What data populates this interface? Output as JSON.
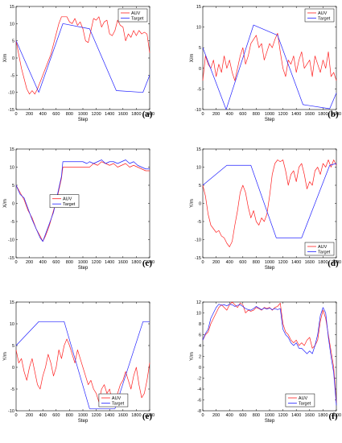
{
  "colors": {
    "auv": "#ff2020",
    "target": "#2020ff",
    "axis": "#000000"
  },
  "chart_data": [
    {
      "panel": "(a)",
      "type": "line",
      "xlabel": "Step",
      "ylabel": "X/m",
      "xlim": [
        0,
        2000
      ],
      "ylim": [
        -15,
        15
      ],
      "xticks": [
        0,
        200,
        400,
        600,
        800,
        1000,
        1200,
        1400,
        1600,
        1800,
        2000
      ],
      "yticks": [
        -15,
        -10,
        -5,
        0,
        5,
        10,
        15
      ],
      "legend": "top-right",
      "series": [
        {
          "name": "AUV",
          "color": "#ff2020",
          "x": [
            0,
            40,
            80,
            120,
            160,
            200,
            240,
            280,
            320,
            360,
            400,
            440,
            480,
            520,
            560,
            600,
            640,
            680,
            720,
            760,
            800,
            840,
            880,
            920,
            960,
            1000,
            1040,
            1080,
            1120,
            1160,
            1200,
            1240,
            1280,
            1320,
            1360,
            1400,
            1440,
            1480,
            1520,
            1560,
            1600,
            1640,
            1680,
            1720,
            1760,
            1800,
            1840,
            1880,
            1920,
            1960,
            2000
          ],
          "y": [
            5,
            1,
            -3,
            -6,
            -9,
            -10.5,
            -9.5,
            -10.5,
            -9,
            -7,
            -5,
            -3,
            -1,
            1,
            4,
            7,
            10,
            12,
            12,
            12,
            10.5,
            10,
            11.5,
            9.5,
            10.5,
            8.5,
            5,
            4.5,
            8,
            11.5,
            11,
            12,
            9,
            10.5,
            11,
            7,
            6.5,
            8,
            11,
            9.5,
            9,
            5,
            7,
            6,
            8,
            6.5,
            8,
            7,
            7.5,
            7,
            1.5
          ]
        },
        {
          "name": "Target",
          "color": "#2020ff",
          "x": [
            0,
            340,
            700,
            1100,
            1500,
            1900,
            2000
          ],
          "y": [
            5,
            -10,
            10,
            8.5,
            -9.5,
            -10,
            -5
          ]
        }
      ]
    },
    {
      "panel": "(b)",
      "type": "line",
      "xlabel": "Step",
      "ylabel": "X/m",
      "xlim": [
        0,
        2000
      ],
      "ylim": [
        -10,
        15
      ],
      "xticks": [
        0,
        200,
        400,
        600,
        800,
        1000,
        1200,
        1400,
        1600,
        1800,
        2000
      ],
      "yticks": [
        -10,
        -5,
        0,
        5,
        10,
        15
      ],
      "legend": "top-right",
      "series": [
        {
          "name": "AUV",
          "color": "#ff2020",
          "x": [
            0,
            40,
            80,
            120,
            160,
            200,
            240,
            280,
            320,
            360,
            400,
            440,
            480,
            520,
            560,
            600,
            640,
            680,
            720,
            760,
            800,
            840,
            880,
            920,
            960,
            1000,
            1040,
            1080,
            1120,
            1160,
            1200,
            1240,
            1280,
            1320,
            1360,
            1400,
            1440,
            1480,
            1520,
            1560,
            1600,
            1640,
            1680,
            1720,
            1760,
            1800,
            1840,
            1880,
            1920,
            1960,
            2000
          ],
          "y": [
            -3,
            3,
            1,
            0,
            2,
            -2,
            1,
            -1,
            3,
            0,
            2,
            -1,
            -3,
            0,
            3,
            5,
            1,
            3,
            6,
            7,
            8,
            5,
            6,
            2,
            4,
            6,
            5,
            7,
            8.5,
            4,
            0,
            -2,
            2,
            1,
            3,
            -1,
            2,
            4,
            0,
            1,
            2,
            -2,
            3,
            1,
            -1,
            2,
            0,
            4,
            -2,
            -1,
            -3
          ]
        },
        {
          "name": "Target",
          "color": "#2020ff",
          "x": [
            0,
            350,
            760,
            1120,
            1500,
            1900,
            2000
          ],
          "y": [
            5,
            -10,
            10.5,
            8,
            -8.8,
            -9.8,
            -6
          ]
        }
      ]
    },
    {
      "panel": "(c)",
      "type": "line",
      "xlabel": "Step",
      "ylabel": "X/m",
      "xlim": [
        0,
        2000
      ],
      "ylim": [
        -15,
        15
      ],
      "xticks": [
        0,
        200,
        400,
        600,
        800,
        1000,
        1200,
        1400,
        1600,
        1800,
        2000
      ],
      "yticks": [
        -15,
        -10,
        -5,
        0,
        5,
        10,
        15
      ],
      "legend": "left",
      "series": [
        {
          "name": "AUV",
          "color": "#ff2020",
          "x": [
            0,
            60,
            120,
            180,
            240,
            300,
            360,
            400,
            440,
            500,
            560,
            620,
            680,
            700,
            760,
            820,
            880,
            940,
            1000,
            1060,
            1100,
            1160,
            1220,
            1280,
            1340,
            1400,
            1460,
            1520,
            1580,
            1640,
            1700,
            1760,
            1820,
            1880,
            1940,
            2000
          ],
          "y": [
            5,
            3,
            1,
            -2,
            -4,
            -7,
            -9,
            -10.5,
            -9,
            -6,
            -2,
            2,
            7,
            10,
            10,
            10,
            10,
            10,
            10,
            10,
            10,
            11,
            10.5,
            11.5,
            11,
            10.5,
            11,
            10,
            10.5,
            11,
            10,
            10.5,
            10,
            9.5,
            9,
            9
          ]
        },
        {
          "name": "Target",
          "color": "#2020ff",
          "x": [
            0,
            60,
            120,
            180,
            240,
            300,
            360,
            400,
            440,
            500,
            560,
            620,
            680,
            700,
            760,
            820,
            880,
            940,
            1000,
            1060,
            1100,
            1160,
            1220,
            1280,
            1340,
            1400,
            1460,
            1520,
            1580,
            1640,
            1700,
            1760,
            1820,
            1880,
            1940,
            2000
          ],
          "y": [
            5,
            2.5,
            1.5,
            -1.5,
            -4.5,
            -7,
            -9.5,
            -10.5,
            -8.5,
            -5.5,
            -2.5,
            2.5,
            7.5,
            11.5,
            11.5,
            11.5,
            11.5,
            11.5,
            11.5,
            11,
            11.5,
            11,
            11.5,
            12,
            11,
            11.5,
            11.5,
            11,
            11.5,
            12,
            11,
            11.5,
            10.5,
            10,
            9.5,
            9.5
          ]
        }
      ]
    },
    {
      "panel": "(d)",
      "type": "line",
      "xlabel": "Step",
      "ylabel": "Y/m",
      "xlim": [
        0,
        2000
      ],
      "ylim": [
        -15,
        15
      ],
      "xticks": [
        0,
        200,
        400,
        600,
        800,
        1000,
        1200,
        1400,
        1600,
        1800,
        2000
      ],
      "yticks": [
        -15,
        -10,
        -5,
        0,
        5,
        10,
        15
      ],
      "legend": "bottom-right",
      "series": [
        {
          "name": "AUV",
          "color": "#ff2020",
          "x": [
            0,
            40,
            80,
            120,
            160,
            200,
            240,
            280,
            320,
            360,
            400,
            440,
            480,
            520,
            560,
            600,
            640,
            680,
            720,
            760,
            800,
            840,
            880,
            920,
            960,
            1000,
            1040,
            1080,
            1120,
            1160,
            1200,
            1240,
            1280,
            1320,
            1360,
            1400,
            1440,
            1480,
            1520,
            1560,
            1600,
            1640,
            1680,
            1720,
            1760,
            1800,
            1840,
            1880,
            1920,
            1960,
            2000
          ],
          "y": [
            5,
            2,
            -3,
            -6,
            -7,
            -8,
            -7.5,
            -9,
            -9.5,
            -11,
            -12,
            -10.5,
            -6,
            -2,
            3,
            5,
            3,
            -1,
            -4,
            -2,
            -5,
            -6,
            -4,
            -5,
            -3,
            2,
            8,
            11,
            12,
            11.5,
            12,
            9,
            5,
            8,
            9,
            6,
            10,
            11,
            8,
            4,
            6,
            5,
            9,
            10,
            8,
            11,
            10,
            12,
            10,
            12,
            10.5
          ]
        },
        {
          "name": "Target",
          "color": "#2020ff",
          "x": [
            0,
            360,
            720,
            1100,
            1480,
            1900,
            2000
          ],
          "y": [
            5,
            10.5,
            10.5,
            -9.5,
            -9.5,
            10.5,
            11
          ]
        }
      ]
    },
    {
      "panel": "(e)",
      "type": "line",
      "xlabel": "Step",
      "ylabel": "Y/m",
      "xlim": [
        0,
        2000
      ],
      "ylim": [
        -10,
        15
      ],
      "xticks": [
        0,
        200,
        400,
        600,
        800,
        1000,
        1200,
        1400,
        1600,
        1800,
        2000
      ],
      "yticks": [
        -10,
        -5,
        0,
        5,
        10,
        15
      ],
      "legend": "bottom-left",
      "series": [
        {
          "name": "AUV",
          "color": "#ff2020",
          "x": [
            0,
            40,
            80,
            120,
            160,
            200,
            240,
            280,
            320,
            360,
            400,
            440,
            480,
            520,
            560,
            600,
            640,
            680,
            720,
            760,
            800,
            840,
            880,
            920,
            960,
            1000,
            1040,
            1080,
            1120,
            1160,
            1200,
            1240,
            1280,
            1320,
            1360,
            1400,
            1440,
            1480,
            1520,
            1560,
            1600,
            1640,
            1680,
            1720,
            1760,
            1800,
            1840,
            1880,
            1920,
            1960,
            2000
          ],
          "y": [
            4,
            1,
            2,
            -1,
            -3,
            0,
            2,
            -1,
            -4,
            -5,
            -2,
            0,
            3,
            1,
            -2,
            0,
            4,
            2,
            5,
            6.5,
            5,
            3,
            1,
            4,
            2,
            0,
            -2,
            -4,
            -3,
            -5,
            -6,
            -8,
            -5,
            -4,
            -6,
            -5,
            -8,
            -9,
            -6,
            -4,
            -3,
            -1,
            -3,
            -5,
            -2,
            0,
            -4,
            -7,
            -6,
            -3,
            1
          ]
        },
        {
          "name": "Target",
          "color": "#2020ff",
          "x": [
            0,
            340,
            720,
            1100,
            1480,
            1900,
            2000
          ],
          "y": [
            5,
            10.5,
            10.5,
            -9.5,
            -9.5,
            10.5,
            10.5
          ]
        }
      ]
    },
    {
      "panel": "(f)",
      "type": "line",
      "xlabel": "Step",
      "ylabel": "Y/m",
      "xlim": [
        0,
        2000
      ],
      "ylim": [
        -8,
        12
      ],
      "xticks": [
        0,
        200,
        400,
        600,
        800,
        1000,
        1200,
        1400,
        1600,
        1800,
        2000
      ],
      "yticks": [
        -8,
        -6,
        -4,
        -2,
        0,
        2,
        4,
        6,
        8,
        10,
        12
      ],
      "legend": "bottom-left",
      "series": [
        {
          "name": "AUV",
          "color": "#ff2020",
          "x": [
            0,
            40,
            80,
            120,
            160,
            200,
            240,
            280,
            320,
            360,
            400,
            440,
            480,
            520,
            560,
            600,
            640,
            680,
            720,
            760,
            800,
            840,
            880,
            920,
            960,
            1000,
            1040,
            1080,
            1120,
            1160,
            1200,
            1240,
            1280,
            1320,
            1360,
            1400,
            1440,
            1480,
            1520,
            1560,
            1600,
            1640,
            1680,
            1720,
            1760,
            1800,
            1840,
            1880,
            1920,
            1960,
            2000
          ],
          "y": [
            5,
            6,
            6.5,
            8,
            9,
            10,
            11,
            11.5,
            11,
            10.5,
            11.5,
            12,
            11.5,
            11,
            11.8,
            11.5,
            10,
            10.5,
            10.3,
            10.5,
            11,
            10.8,
            10.5,
            11,
            10.8,
            11,
            10.5,
            11,
            11.2,
            11.8,
            8,
            6.5,
            6,
            5,
            4.5,
            5,
            4,
            4.5,
            4,
            5,
            5.5,
            3.5,
            4,
            5,
            8.5,
            10.5,
            9,
            6,
            3,
            0,
            -6.5
          ]
        },
        {
          "name": "Target",
          "color": "#2020ff",
          "x": [
            0,
            40,
            80,
            120,
            160,
            200,
            240,
            280,
            320,
            360,
            400,
            440,
            480,
            520,
            560,
            600,
            640,
            680,
            720,
            760,
            800,
            840,
            880,
            920,
            960,
            1000,
            1040,
            1080,
            1120,
            1160,
            1200,
            1240,
            1280,
            1320,
            1360,
            1400,
            1440,
            1480,
            1520,
            1560,
            1600,
            1640,
            1680,
            1720,
            1760,
            1800,
            1840,
            1880,
            1920,
            1960,
            2000
          ],
          "y": [
            5,
            6.2,
            7,
            9,
            10,
            11,
            11.6,
            11.4,
            11.5,
            11.3,
            11.6,
            11.5,
            11.2,
            11.4,
            11.5,
            11.2,
            10.8,
            10.6,
            10.5,
            10.8,
            11.2,
            10.9,
            10.6,
            10.9,
            10.7,
            10.9,
            10.6,
            10.8,
            10.6,
            10.8,
            7,
            6,
            5.5,
            4.5,
            4,
            4.5,
            3.5,
            3.5,
            3,
            2.5,
            3,
            2.5,
            4,
            6,
            9.5,
            11,
            10,
            5.5,
            2,
            -1,
            -7
          ]
        }
      ]
    }
  ]
}
